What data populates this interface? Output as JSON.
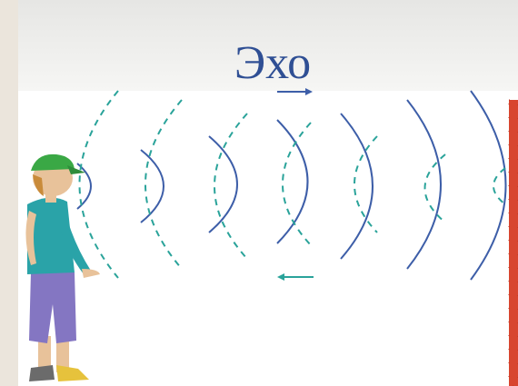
{
  "slide": {
    "title": "Эхо"
  }
}
